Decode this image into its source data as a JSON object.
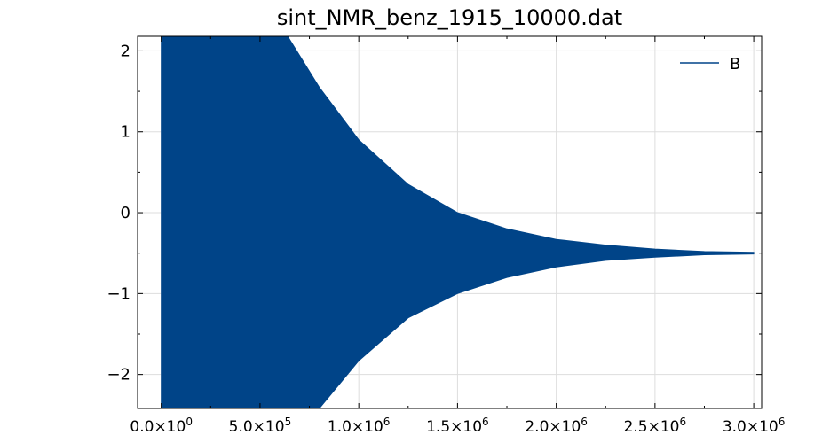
{
  "chart_data": {
    "type": "area",
    "title": "sint_NMR_benz_1915_10000.dat",
    "xlabel": "",
    "ylabel": "",
    "xlim": [
      -120000,
      3040000
    ],
    "ylim": [
      -2.42,
      2.18
    ],
    "grid": true,
    "legend": {
      "placement": "top-right",
      "entries": [
        "B"
      ]
    },
    "x_ticks": [
      {
        "value": 0,
        "mant": "0.0",
        "exp": "0"
      },
      {
        "value": 500000,
        "mant": "5.0",
        "exp": "5"
      },
      {
        "value": 1000000,
        "mant": "1.0",
        "exp": "6"
      },
      {
        "value": 1500000,
        "mant": "1.5",
        "exp": "6"
      },
      {
        "value": 2000000,
        "mant": "2.0",
        "exp": "6"
      },
      {
        "value": 2500000,
        "mant": "2.5",
        "exp": "6"
      },
      {
        "value": 3000000,
        "mant": "3.0",
        "exp": "6"
      }
    ],
    "y_ticks": [
      {
        "value": 2,
        "label": "2"
      },
      {
        "value": 1,
        "label": "1"
      },
      {
        "value": 0,
        "label": "0"
      },
      {
        "value": -1,
        "label": "−1"
      },
      {
        "value": -2,
        "label": "−2"
      }
    ],
    "series": [
      {
        "name": "B",
        "color": "#004488",
        "x": [
          0,
          250000,
          500000,
          640000,
          800000,
          1000000,
          1250000,
          1500000,
          1750000,
          2000000,
          2250000,
          2500000,
          2750000,
          3000000
        ],
        "upper": [
          2.18,
          2.18,
          2.18,
          2.18,
          1.55,
          0.9,
          0.35,
          0.0,
          -0.2,
          -0.33,
          -0.4,
          -0.45,
          -0.48,
          -0.49
        ],
        "lower": [
          -2.42,
          -2.42,
          -2.42,
          -2.42,
          -2.42,
          -1.83,
          -1.3,
          -1.0,
          -0.8,
          -0.67,
          -0.59,
          -0.55,
          -0.52,
          -0.51
        ]
      }
    ]
  }
}
